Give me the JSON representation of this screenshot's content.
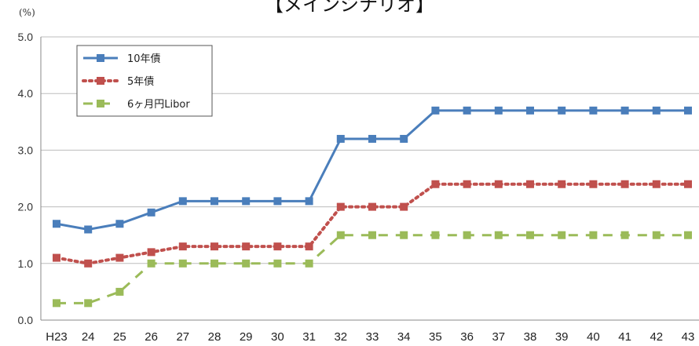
{
  "chart_data": {
    "type": "line",
    "title": "【メインシナリオ】",
    "y_unit": "(%)",
    "categories": [
      "H23",
      "24",
      "25",
      "26",
      "27",
      "28",
      "29",
      "30",
      "31",
      "32",
      "33",
      "34",
      "35",
      "36",
      "37",
      "38",
      "39",
      "40",
      "41",
      "42",
      "43"
    ],
    "ylim": [
      0,
      5
    ],
    "yticks": [
      "0.0",
      "1.0",
      "2.0",
      "3.0",
      "4.0",
      "5.0"
    ],
    "grid": true,
    "legend_position": "top-left",
    "series": [
      {
        "name": "10年債",
        "color": "#4a7ebb",
        "style": "solid",
        "values": [
          1.7,
          1.6,
          1.7,
          1.9,
          2.1,
          2.1,
          2.1,
          2.1,
          2.1,
          3.2,
          3.2,
          3.2,
          3.7,
          3.7,
          3.7,
          3.7,
          3.7,
          3.7,
          3.7,
          3.7,
          3.7
        ]
      },
      {
        "name": "5年債",
        "color": "#c0504d",
        "style": "dotted",
        "values": [
          1.1,
          1.0,
          1.1,
          1.2,
          1.3,
          1.3,
          1.3,
          1.3,
          1.3,
          2.0,
          2.0,
          2.0,
          2.4,
          2.4,
          2.4,
          2.4,
          2.4,
          2.4,
          2.4,
          2.4,
          2.4
        ]
      },
      {
        "name": "6ヶ月円Libor",
        "color": "#9bbb59",
        "style": "dashed",
        "values": [
          0.3,
          0.3,
          0.5,
          1.0,
          1.0,
          1.0,
          1.0,
          1.0,
          1.0,
          1.5,
          1.5,
          1.5,
          1.5,
          1.5,
          1.5,
          1.5,
          1.5,
          1.5,
          1.5,
          1.5,
          1.5
        ]
      }
    ]
  }
}
